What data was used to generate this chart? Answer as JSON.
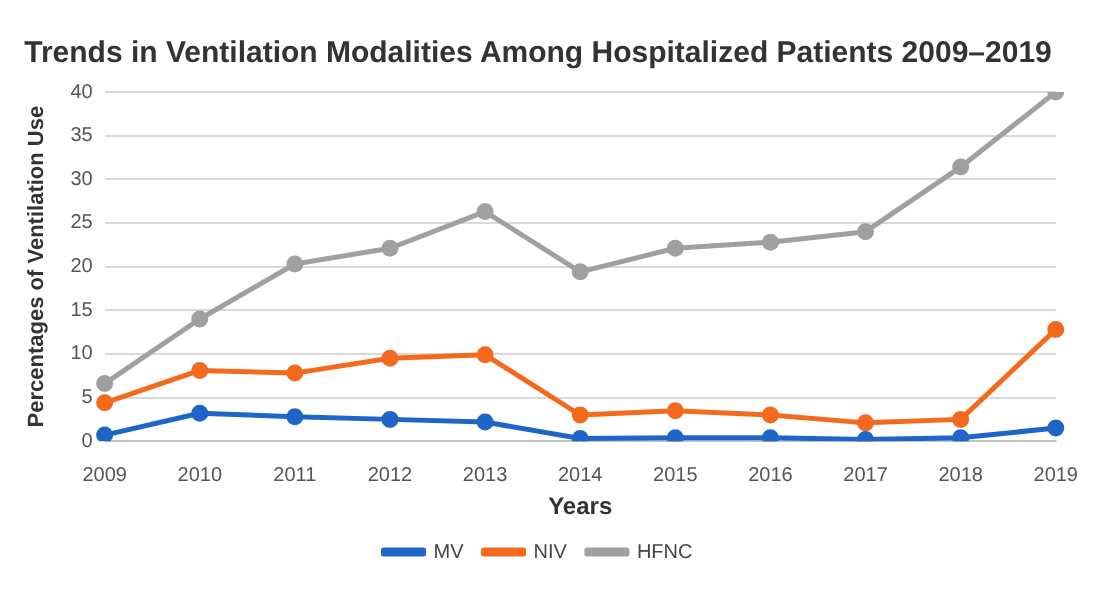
{
  "chart_data": {
    "type": "line",
    "title": "Trends in Ventilation Modalities Among Hospitalized Patients 2009–2019",
    "xlabel": "Years",
    "ylabel": "Percentages of Ventilation Use",
    "categories": [
      "2009",
      "2010",
      "2011",
      "2012",
      "2013",
      "2014",
      "2015",
      "2016",
      "2017",
      "2018",
      "2019"
    ],
    "series": [
      {
        "name": "MV",
        "color": "#1f65c8",
        "values": [
          0.7,
          3.2,
          2.8,
          2.5,
          2.2,
          0.3,
          0.4,
          0.4,
          0.2,
          0.4,
          1.5
        ]
      },
      {
        "name": "NIV",
        "color": "#f36a1d",
        "values": [
          4.4,
          8.1,
          7.8,
          9.5,
          9.9,
          3.0,
          3.5,
          3.0,
          2.1,
          2.5,
          12.8
        ]
      },
      {
        "name": "HFNC",
        "color": "#a0a0a0",
        "values": [
          6.6,
          14.0,
          20.3,
          22.1,
          26.3,
          19.4,
          22.1,
          22.8,
          24.0,
          31.4,
          40.0
        ]
      }
    ],
    "ylim": [
      0,
      40
    ],
    "yticks": [
      0,
      5,
      10,
      15,
      20,
      25,
      30,
      35,
      40
    ],
    "grid": "y",
    "legend": "bottom",
    "marker": "circle",
    "line_style": "solid"
  }
}
